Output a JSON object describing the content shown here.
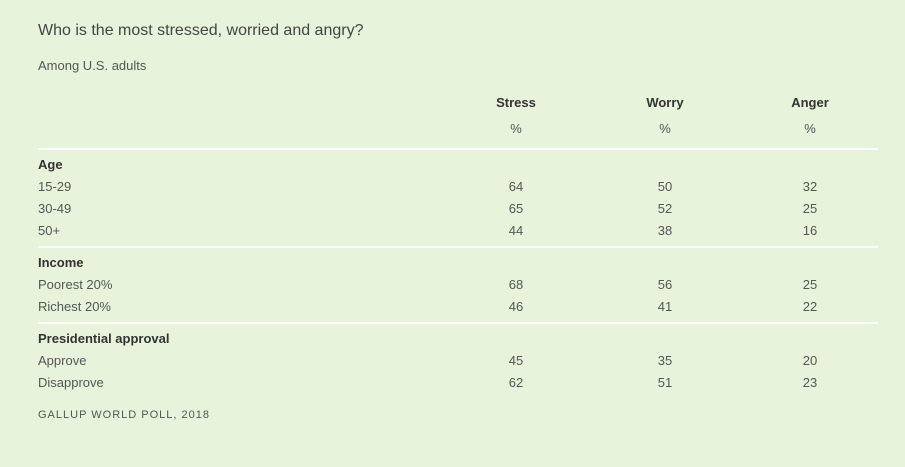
{
  "title": "Who is the most stressed, worried and angry?",
  "subtitle": "Among U.S. adults",
  "columns": [
    "Stress",
    "Worry",
    "Anger"
  ],
  "units": [
    "%",
    "%",
    "%"
  ],
  "groups": [
    {
      "label": "Age",
      "rows": [
        {
          "label": "15-29",
          "values": [
            "64",
            "50",
            "32"
          ]
        },
        {
          "label": "30-49",
          "values": [
            "65",
            "52",
            "25"
          ]
        },
        {
          "label": "50+",
          "values": [
            "44",
            "38",
            "16"
          ]
        }
      ]
    },
    {
      "label": "Income",
      "rows": [
        {
          "label": "Poorest 20%",
          "values": [
            "68",
            "56",
            "25"
          ]
        },
        {
          "label": "Richest 20%",
          "values": [
            "46",
            "41",
            "22"
          ]
        }
      ]
    },
    {
      "label": "Presidential approval",
      "rows": [
        {
          "label": "Approve",
          "values": [
            "45",
            "35",
            "20"
          ]
        },
        {
          "label": "Disapprove",
          "values": [
            "62",
            "51",
            "23"
          ]
        }
      ]
    }
  ],
  "footer": "GALLUP WORLD POLL, 2018"
}
